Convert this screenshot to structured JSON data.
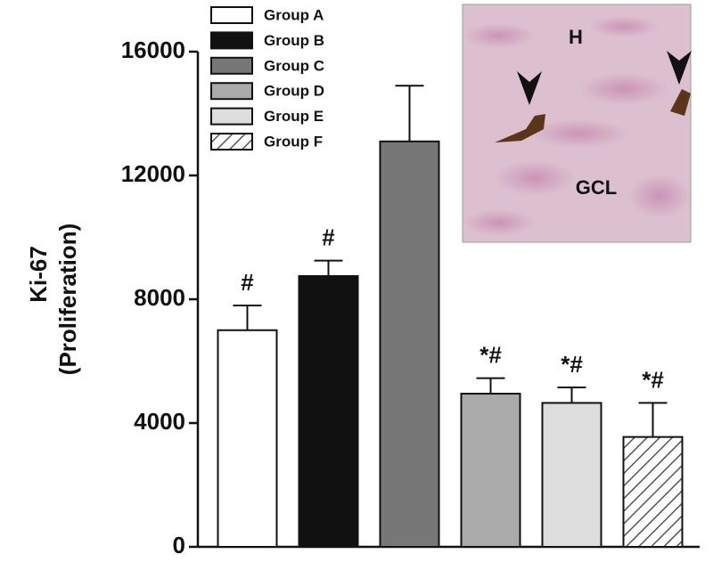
{
  "chart_data": {
    "type": "bar",
    "ylabel": [
      "Ki-67",
      "(Proliferation)"
    ],
    "categories": [
      "Group A",
      "Group B",
      "Group C",
      "Group D",
      "Group E",
      "Group F"
    ],
    "values": [
      7000,
      8750,
      13100,
      4950,
      4650,
      3550
    ],
    "errors": [
      800,
      500,
      1800,
      500,
      500,
      1100
    ],
    "annotations": [
      "#",
      "#",
      null,
      "*#",
      "*#",
      "*#"
    ],
    "colors": [
      "#ffffff",
      "#111111",
      "#777777",
      "#aaaaaa",
      "#dddddd",
      "#ffffff"
    ],
    "patterns": [
      "solid",
      "solid",
      "solid",
      "solid",
      "solid",
      "hatch"
    ],
    "ylim": [
      0,
      16000
    ],
    "yticks": [
      0,
      4000,
      8000,
      12000,
      16000
    ],
    "legend": "upper left",
    "inset_labels": [
      "H",
      "GCL"
    ]
  }
}
